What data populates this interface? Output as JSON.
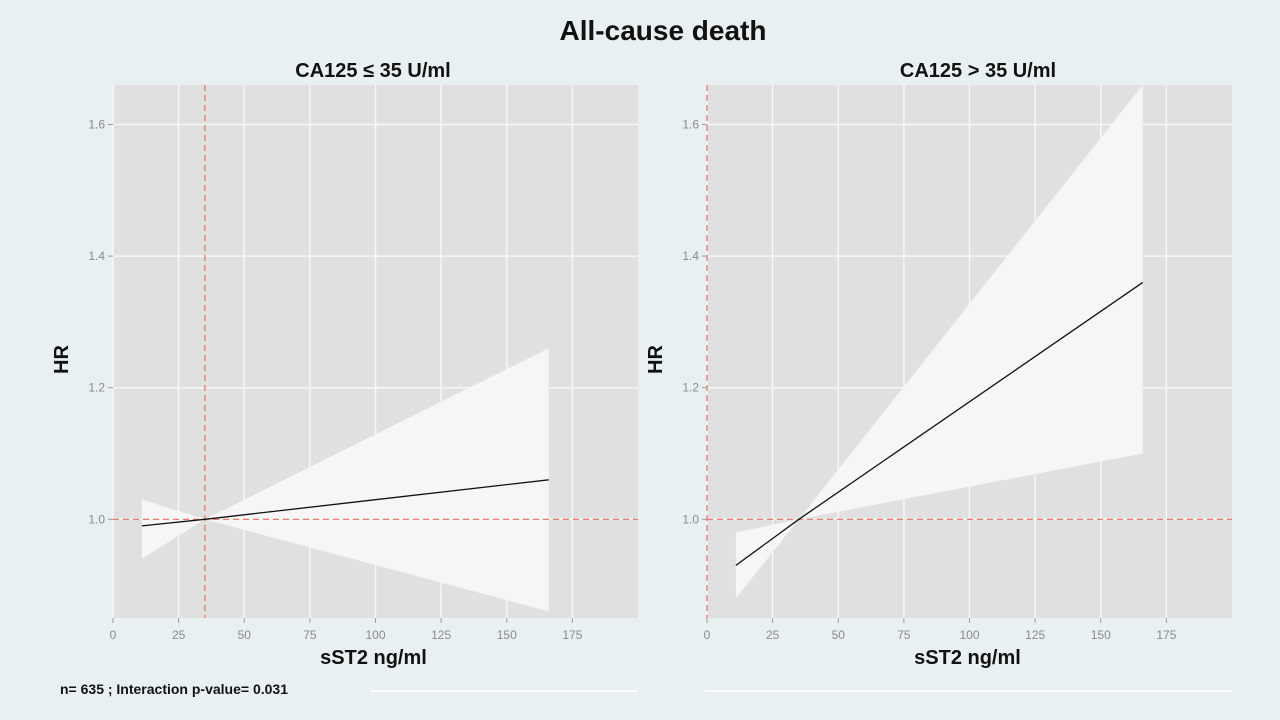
{
  "title": "All-cause death",
  "footnote": "n= 635 ; Interaction p-value= 0.031",
  "colors": {
    "panel_bg": "#e0e0e0",
    "grid": "#f7f7f7",
    "ribbon": "#f6f6f6",
    "line": "#111111",
    "reference": "#f06a5a",
    "page_bg": "#e9f0f2"
  },
  "chart_data": [
    {
      "type": "line",
      "title": "CA125 ≤ 35 U/ml",
      "xlabel": "sST2 ng/ml",
      "ylabel": "HR",
      "xlim": [
        0,
        200
      ],
      "ylim": [
        0.85,
        1.66
      ],
      "x_ticks": [
        0,
        25,
        50,
        75,
        100,
        125,
        150,
        175
      ],
      "x_tick_labels": [
        "0",
        "25",
        "50",
        "75",
        "100",
        "125",
        "150",
        "175"
      ],
      "y_ticks": [
        1.0,
        1.2,
        1.4,
        1.6
      ],
      "y_tick_labels": [
        "1.0",
        "1.2",
        "1.4",
        "1.6"
      ],
      "ref_x": 35,
      "ref_y": 1.0,
      "series": [
        {
          "name": "HR",
          "x": [
            11,
            35,
            166
          ],
          "y": [
            0.99,
            1.0,
            1.06
          ]
        },
        {
          "name": "CI upper",
          "x": [
            11,
            35,
            166
          ],
          "y": [
            1.03,
            1.0,
            1.26
          ]
        },
        {
          "name": "CI lower",
          "x": [
            11,
            35,
            166
          ],
          "y": [
            0.94,
            1.0,
            0.86
          ]
        }
      ]
    },
    {
      "type": "line",
      "title": "CA125 > 35 U/ml",
      "xlabel": "sST2 ng/ml",
      "ylabel": "HR",
      "xlim": [
        0,
        200
      ],
      "ylim": [
        0.85,
        1.66
      ],
      "x_ticks": [
        0,
        25,
        50,
        75,
        100,
        125,
        150,
        175
      ],
      "x_tick_labels": [
        "0",
        "25",
        "50",
        "75",
        "100",
        "125",
        "150",
        "175"
      ],
      "y_ticks": [
        1.0,
        1.2,
        1.4,
        1.6
      ],
      "y_tick_labels": [
        "1.0",
        "1.2",
        "1.4",
        "1.6"
      ],
      "ref_x": 0,
      "ref_y": 1.0,
      "series": [
        {
          "name": "HR",
          "x": [
            11,
            35,
            166
          ],
          "y": [
            0.93,
            1.0,
            1.36
          ]
        },
        {
          "name": "CI upper",
          "x": [
            11,
            35,
            166
          ],
          "y": [
            0.98,
            1.0,
            1.66
          ]
        },
        {
          "name": "CI lower",
          "x": [
            11,
            35,
            166
          ],
          "y": [
            0.88,
            1.0,
            1.1
          ]
        }
      ]
    }
  ]
}
